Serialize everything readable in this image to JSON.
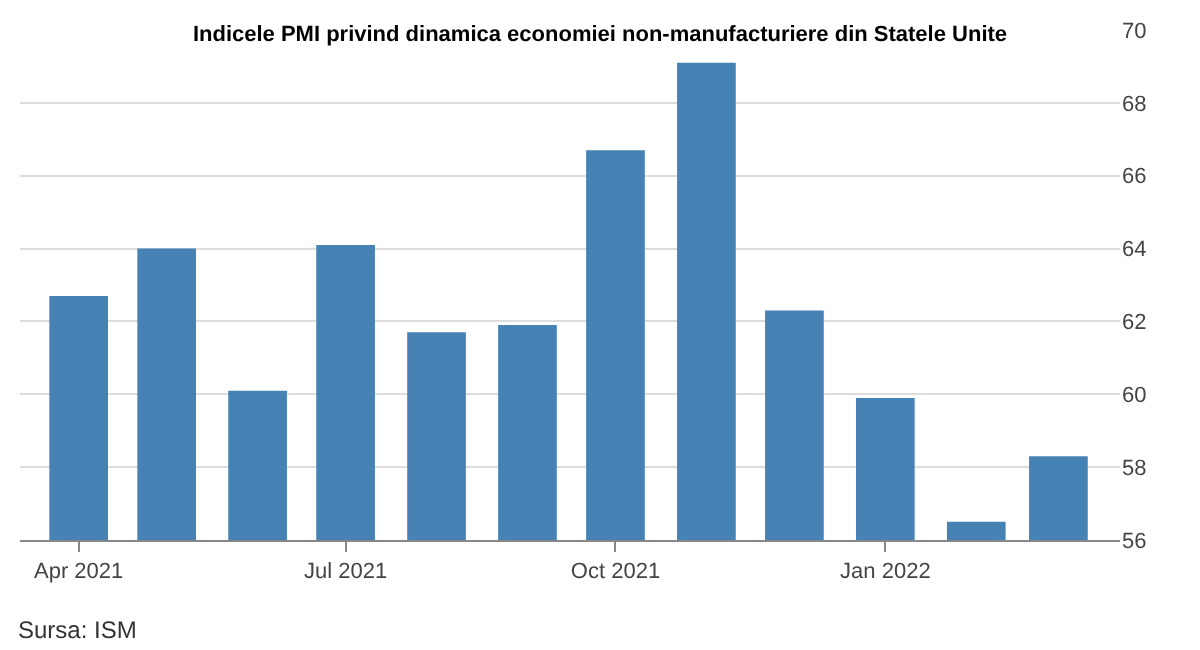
{
  "chart_data": {
    "type": "bar",
    "title": "Indicele PMI privind dinamica economiei non-manufacturiere din Statele Unite",
    "x": [
      "2021-04",
      "2021-05",
      "2021-06",
      "2021-07",
      "2021-08",
      "2021-09",
      "2021-10",
      "2021-11",
      "2021-12",
      "2022-01",
      "2022-02",
      "2022-03"
    ],
    "values": [
      62.7,
      64.0,
      60.1,
      64.1,
      61.7,
      61.9,
      66.7,
      69.1,
      62.3,
      59.9,
      56.5,
      58.3
    ],
    "color": "#4682b4",
    "xlim": [
      "2021-03-12",
      "2022-03-22"
    ],
    "xticks": [
      {
        "value": "2021-04",
        "label": "Apr 2021"
      },
      {
        "value": "2021-07",
        "label": "Jul 2021"
      },
      {
        "value": "2021-10",
        "label": "Oct 2021"
      },
      {
        "value": "2022-01",
        "label": "Jan 2022"
      }
    ],
    "ylim": [
      56,
      70
    ],
    "yticks": [
      56,
      58,
      60,
      62,
      64,
      66,
      68,
      70
    ],
    "grid": "y",
    "legend": false,
    "annotations": [
      "Sursa: ISM"
    ]
  }
}
